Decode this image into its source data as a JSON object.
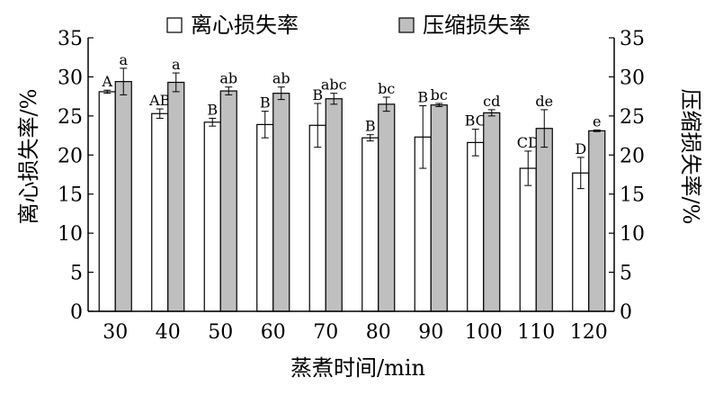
{
  "chart_data": {
    "type": "bar",
    "categories": [
      "30",
      "40",
      "50",
      "60",
      "70",
      "80",
      "90",
      "100",
      "110",
      "120"
    ],
    "series": [
      {
        "name": "离心损失率",
        "values": [
          28.1,
          25.3,
          24.2,
          23.9,
          23.8,
          22.2,
          22.3,
          21.6,
          18.3,
          17.7
        ],
        "errors": [
          0.2,
          0.6,
          0.5,
          1.7,
          2.8,
          0.4,
          4.0,
          1.7,
          2.2,
          2.0
        ],
        "significance": [
          "A",
          "AB",
          "B",
          "B",
          "B",
          "B",
          "B",
          "BC",
          "CD",
          "D"
        ],
        "color": "#ffffff"
      },
      {
        "name": "压缩损失率",
        "values": [
          29.4,
          29.3,
          28.2,
          27.9,
          27.2,
          26.5,
          26.4,
          25.4,
          23.4,
          23.1
        ],
        "errors": [
          1.7,
          1.2,
          0.5,
          0.8,
          0.7,
          0.9,
          0.2,
          0.4,
          2.4,
          0.1
        ],
        "significance": [
          "a",
          "a",
          "ab",
          "ab",
          "abc",
          "bc",
          "bc",
          "cd",
          "de",
          "e"
        ],
        "color": "#bfbfbf"
      }
    ],
    "xlabel": "蒸煮时间/min",
    "ylabel": "离心损失率/%",
    "y2label": "压缩损失率/%",
    "ylim": [
      0,
      35
    ],
    "y2lim": [
      0,
      35
    ],
    "yticks": [
      0,
      5,
      10,
      15,
      20,
      25,
      30,
      35
    ],
    "grid": false,
    "legend_position": "top"
  }
}
